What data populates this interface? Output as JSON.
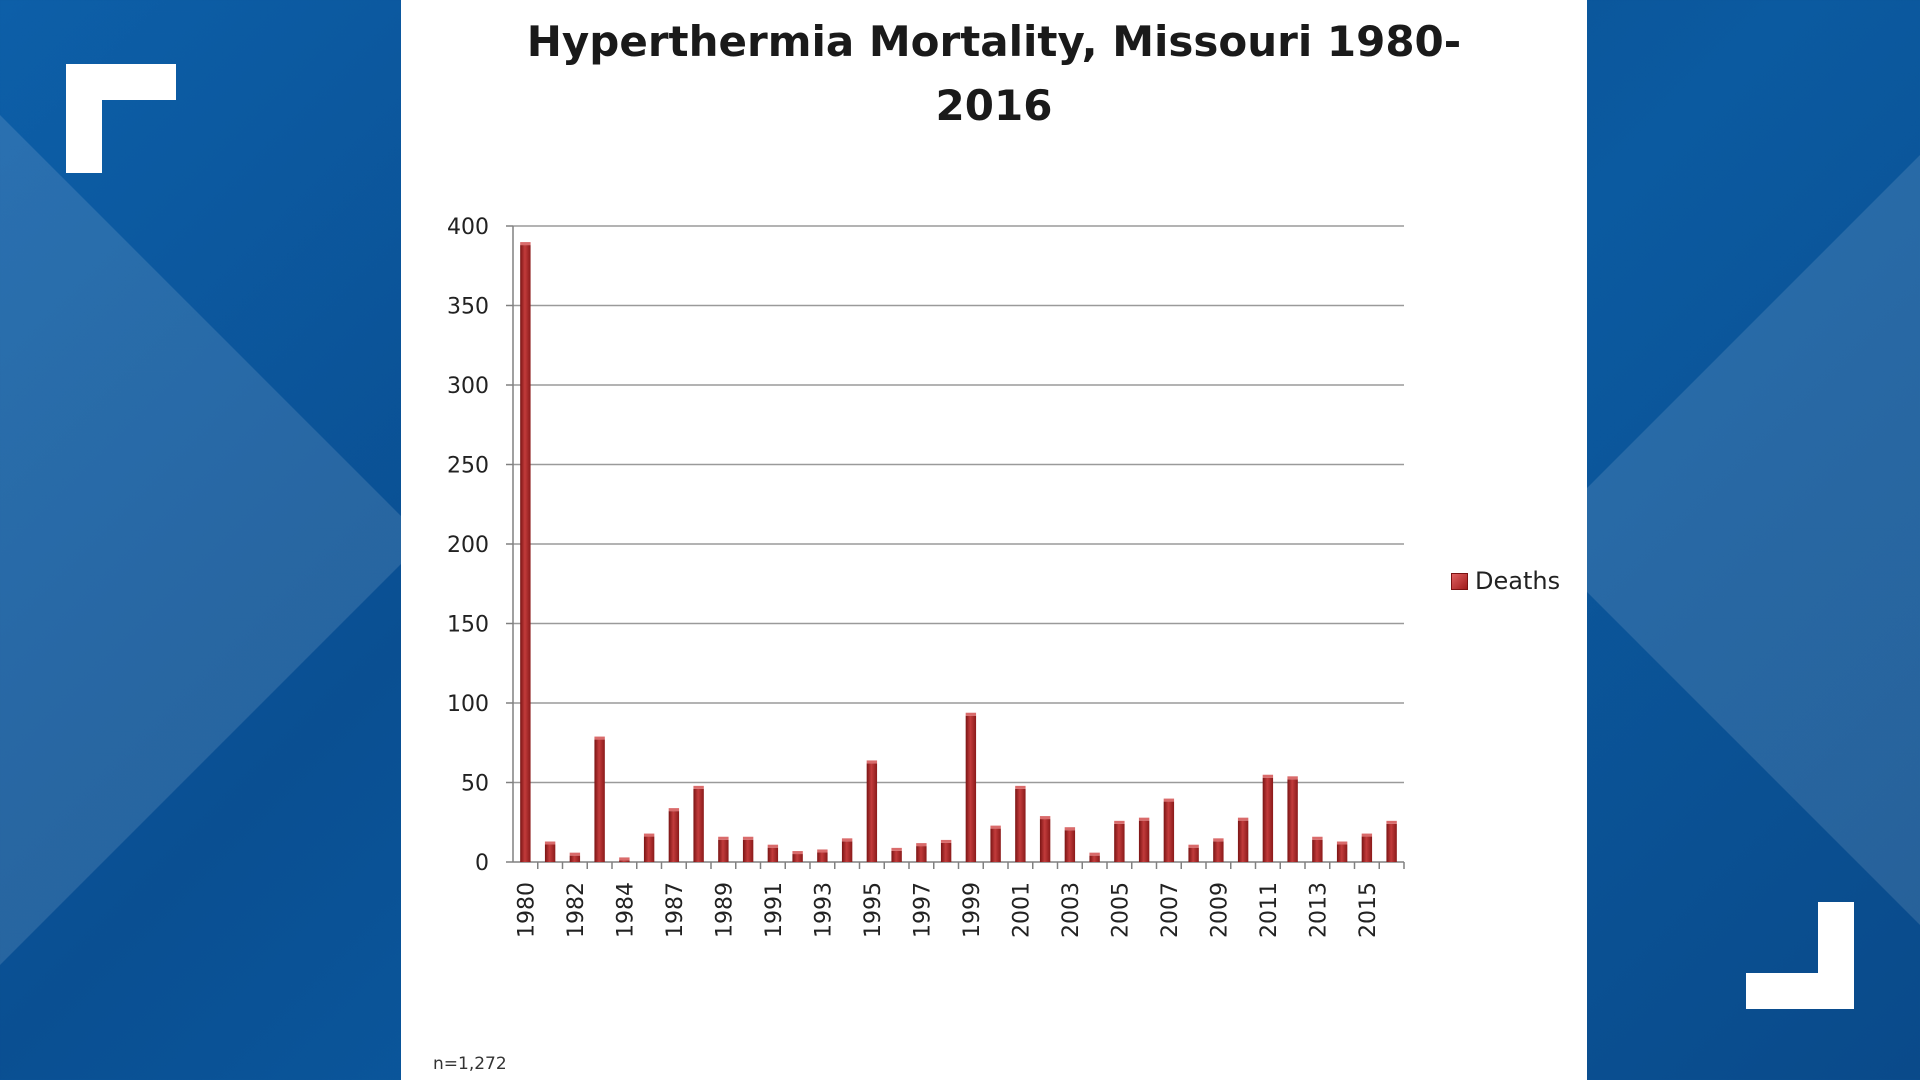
{
  "chart_data": {
    "type": "bar",
    "title": "Hyperthermia Mortality, Missouri 1980-\n2016",
    "title_line1": "Hyperthermia Mortality, Missouri 1980-",
    "title_line2": "2016",
    "xlabel": "",
    "ylabel": "",
    "ylim": [
      0,
      400
    ],
    "yticks": [
      0,
      50,
      100,
      150,
      200,
      250,
      300,
      350,
      400
    ],
    "grid": true,
    "legend_position": "right",
    "categories": [
      "1980",
      "1981",
      "1982",
      "1983",
      "1984",
      "1986",
      "1987",
      "1988",
      "1989",
      "1990",
      "1991",
      "1992",
      "1993",
      "1994",
      "1995",
      "1996",
      "1997",
      "1998",
      "1999",
      "2000",
      "2001",
      "2002",
      "2003",
      "2004",
      "2005",
      "2006",
      "2007",
      "2008",
      "2009",
      "2010",
      "2011",
      "2012",
      "2013",
      "2014",
      "2015",
      "2016"
    ],
    "tick_labels": [
      "1980",
      "1982",
      "1984",
      "1987",
      "1989",
      "1991",
      "1993",
      "1995",
      "1997",
      "1999",
      "2001",
      "2003",
      "2005",
      "2007",
      "2009",
      "2011",
      "2013",
      "2015"
    ],
    "series": [
      {
        "name": "Deaths",
        "color": "#a52a2a",
        "values": [
          388,
          11,
          4,
          77,
          1,
          16,
          32,
          46,
          14,
          14,
          9,
          5,
          6,
          13,
          62,
          7,
          10,
          12,
          92,
          21,
          46,
          27,
          20,
          4,
          24,
          26,
          38,
          9,
          13,
          26,
          53,
          52,
          14,
          11,
          16,
          24
        ]
      }
    ],
    "annotation": "n=1,272"
  }
}
